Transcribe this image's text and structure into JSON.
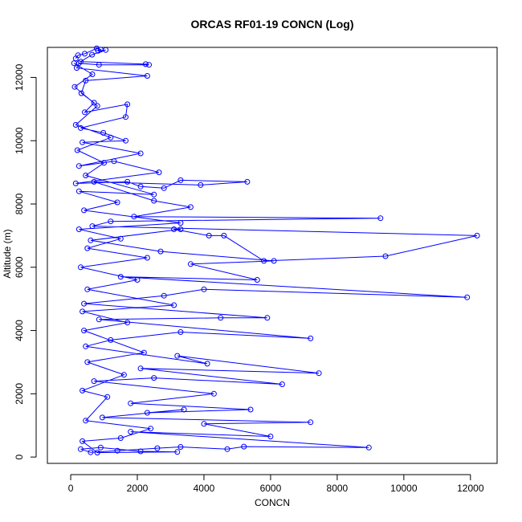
{
  "chart_data": {
    "type": "scatter",
    "title": "ORCAS RF01-19 CONCN (Log)",
    "xlabel": "CONCN",
    "ylabel": "Altitude (m)",
    "xlim": [
      -700,
      12800
    ],
    "ylim": [
      -200,
      12950
    ],
    "xticks": [
      0,
      2000,
      4000,
      6000,
      8000,
      10000,
      12000
    ],
    "yticks": [
      0,
      2000,
      4000,
      6000,
      8000,
      10000,
      12000
    ],
    "grid": false,
    "legend": "none",
    "colors": {
      "series": "#0000ff"
    },
    "series": [
      {
        "marker": "open-circle",
        "line": true,
        "points": [
          [
            150,
            12600
          ],
          [
            220,
            12700
          ],
          [
            420,
            12750
          ],
          [
            780,
            12920
          ],
          [
            900,
            12880
          ],
          [
            820,
            12840
          ],
          [
            1050,
            12870
          ],
          [
            640,
            12720
          ],
          [
            300,
            12500
          ],
          [
            2250,
            12420
          ],
          [
            2350,
            12400
          ],
          [
            850,
            12400
          ],
          [
            250,
            12450
          ],
          [
            180,
            12300
          ],
          [
            2300,
            12050
          ],
          [
            450,
            11900
          ],
          [
            320,
            11500
          ],
          [
            700,
            11200
          ],
          [
            420,
            10900
          ],
          [
            1700,
            11150
          ],
          [
            1650,
            10750
          ],
          [
            300,
            10400
          ],
          [
            980,
            10250
          ],
          [
            1650,
            10000
          ],
          [
            350,
            9950
          ],
          [
            2100,
            9600
          ],
          [
            250,
            9200
          ],
          [
            1300,
            9350
          ],
          [
            2650,
            9000
          ],
          [
            150,
            8650
          ],
          [
            1700,
            8700
          ],
          [
            2100,
            8550
          ],
          [
            2800,
            8500
          ],
          [
            3300,
            8750
          ],
          [
            5300,
            8700
          ],
          [
            3900,
            8600
          ],
          [
            700,
            8700
          ],
          [
            2500,
            8100
          ],
          [
            3600,
            7900
          ],
          [
            1900,
            7600
          ],
          [
            9300,
            7550
          ],
          [
            1200,
            7450
          ],
          [
            650,
            7300
          ],
          [
            12200,
            7000
          ],
          [
            9450,
            6350
          ],
          [
            5800,
            6200
          ],
          [
            4600,
            7000
          ],
          [
            4150,
            7000
          ],
          [
            3100,
            7200
          ],
          [
            3300,
            7200
          ],
          [
            600,
            6850
          ],
          [
            2700,
            6500
          ],
          [
            6100,
            6200
          ],
          [
            3600,
            6100
          ],
          [
            5600,
            5600
          ],
          [
            1500,
            5700
          ],
          [
            11900,
            5050
          ],
          [
            4000,
            5300
          ],
          [
            2800,
            5100
          ],
          [
            400,
            4850
          ],
          [
            5900,
            4400
          ],
          [
            4500,
            4400
          ],
          [
            850,
            4350
          ],
          [
            7200,
            3750
          ],
          [
            3300,
            3950
          ],
          [
            1200,
            3700
          ],
          [
            450,
            3500
          ],
          [
            4100,
            2950
          ],
          [
            3200,
            3200
          ],
          [
            7450,
            2650
          ],
          [
            2100,
            2800
          ],
          [
            6350,
            2300
          ],
          [
            2500,
            2500
          ],
          [
            700,
            2400
          ],
          [
            4300,
            2000
          ],
          [
            1800,
            1700
          ],
          [
            5400,
            1500
          ],
          [
            2300,
            1400
          ],
          [
            3400,
            1500
          ],
          [
            950,
            1250
          ],
          [
            7200,
            1100
          ],
          [
            4000,
            1050
          ],
          [
            6000,
            650
          ],
          [
            1800,
            800
          ],
          [
            8950,
            300
          ],
          [
            5200,
            330
          ],
          [
            4700,
            250
          ],
          [
            3300,
            320
          ],
          [
            2600,
            280
          ],
          [
            1400,
            200
          ],
          [
            600,
            150
          ],
          [
            300,
            250
          ],
          [
            900,
            300
          ],
          [
            2100,
            180
          ],
          [
            3200,
            160
          ],
          [
            800,
            140
          ],
          [
            350,
            500
          ],
          [
            1500,
            600
          ],
          [
            2400,
            900
          ],
          [
            450,
            1150
          ],
          [
            1100,
            1900
          ],
          [
            350,
            2100
          ],
          [
            1600,
            2600
          ],
          [
            500,
            3000
          ],
          [
            2200,
            3300
          ],
          [
            400,
            4000
          ],
          [
            1700,
            4250
          ],
          [
            350,
            4600
          ],
          [
            3100,
            4800
          ],
          [
            500,
            5300
          ],
          [
            2000,
            5600
          ],
          [
            300,
            6000
          ],
          [
            2300,
            6300
          ],
          [
            500,
            6600
          ],
          [
            1500,
            6900
          ],
          [
            250,
            7200
          ],
          [
            3300,
            7400
          ],
          [
            400,
            7800
          ],
          [
            1400,
            8050
          ],
          [
            250,
            8400
          ],
          [
            2500,
            8300
          ],
          [
            450,
            8900
          ],
          [
            1000,
            9300
          ],
          [
            200,
            9700
          ],
          [
            1200,
            10100
          ],
          [
            150,
            10500
          ],
          [
            800,
            11100
          ],
          [
            120,
            11700
          ],
          [
            650,
            12100
          ],
          [
            100,
            12450
          ]
        ]
      }
    ]
  }
}
